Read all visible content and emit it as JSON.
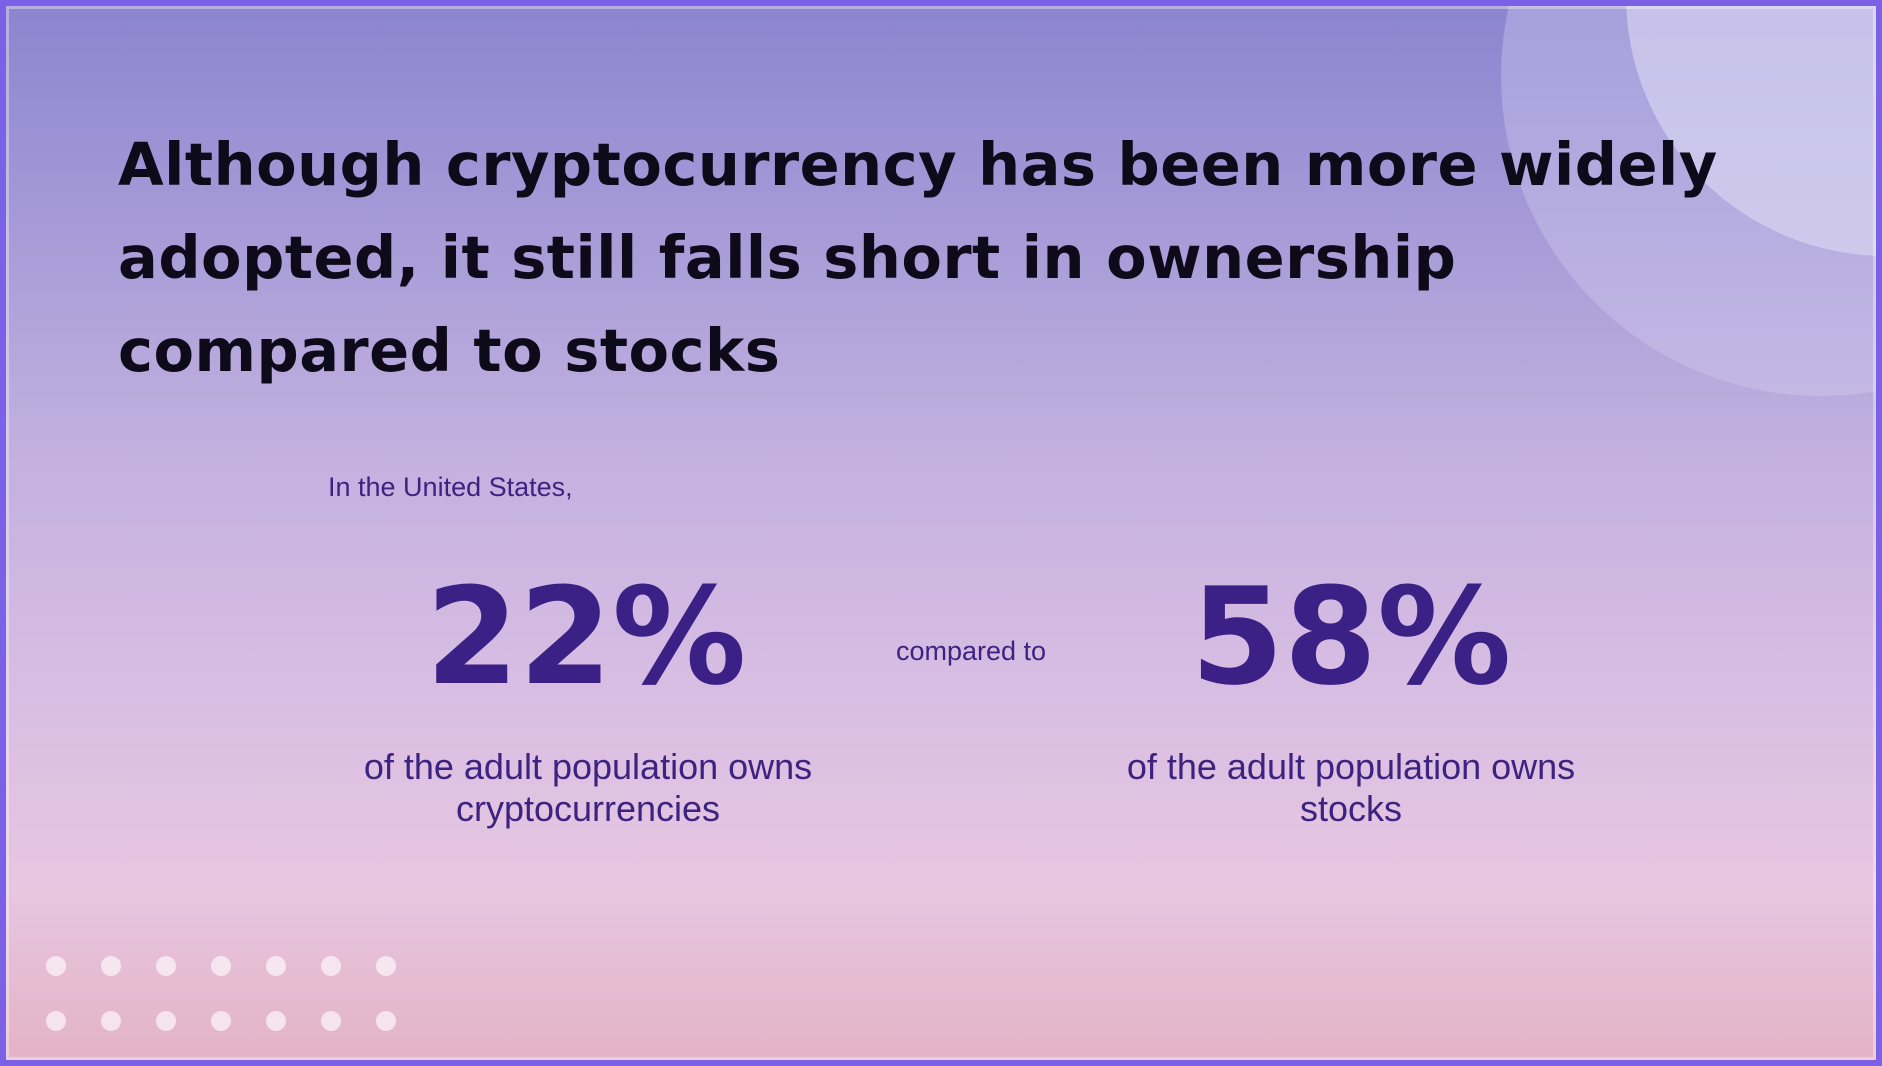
{
  "slide": {
    "title": "Although cryptocurrency has been more widely adopted, it still falls short in ownership compared to stocks",
    "intro": "In the United States,",
    "left_stat": {
      "value": "22%",
      "description": "of the adult population owns cryptocurrencies"
    },
    "connector": "compared to",
    "right_stat": {
      "value": "58%",
      "description": "of the adult population owns stocks"
    }
  },
  "colors": {
    "border": "#7b61e6",
    "title": "#0d0a1a",
    "accent_text": "#3b2186"
  }
}
